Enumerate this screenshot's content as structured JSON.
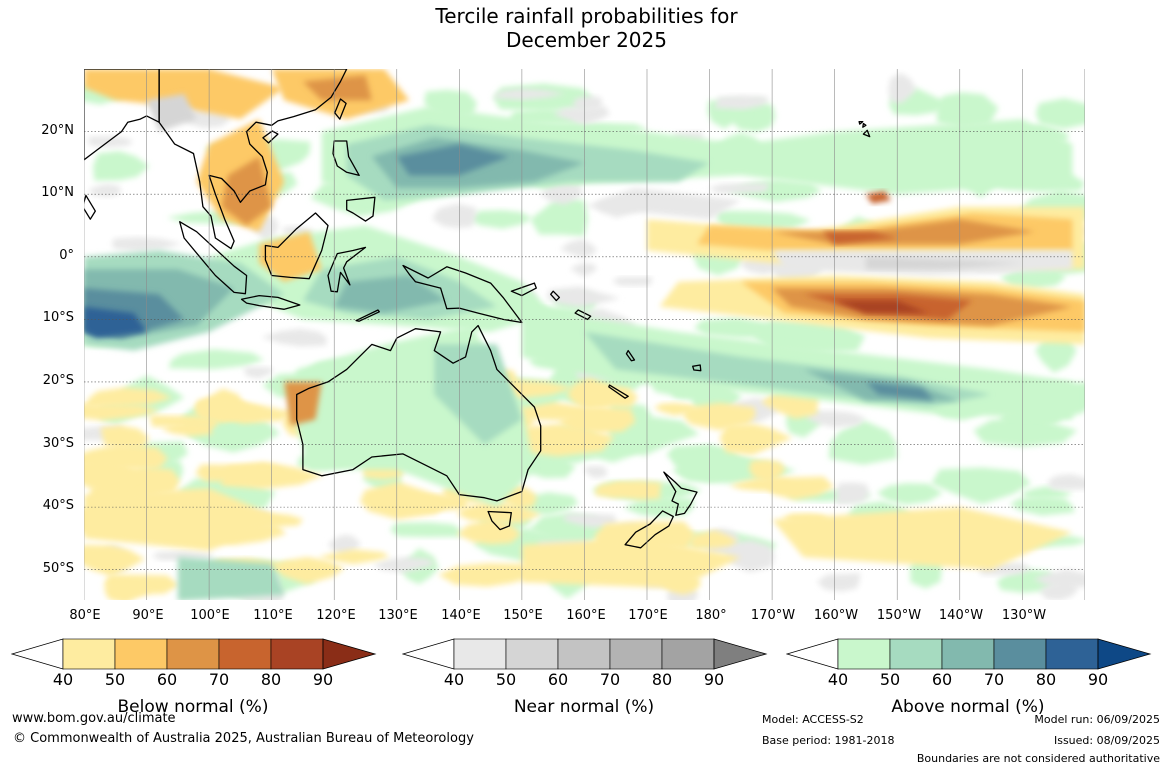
{
  "title": {
    "line1": "Tercile rainfall probabilities for",
    "line2": "December 2025"
  },
  "lat_labels": [
    "20°N",
    "10°N",
    "0°",
    "10°S",
    "20°S",
    "30°S",
    "40°S",
    "50°S"
  ],
  "lon_labels": [
    "80°E",
    "90°E",
    "100°E",
    "110°E",
    "120°E",
    "130°E",
    "140°E",
    "150°E",
    "160°E",
    "170°E",
    "180°",
    "170°W",
    "160°W",
    "150°W",
    "140°W",
    "130°W"
  ],
  "colorbars": [
    {
      "title": "Below normal (%)",
      "ticks": [
        "40",
        "50",
        "60",
        "70",
        "80",
        "90"
      ],
      "colors": [
        "#ffffff",
        "#feeca0",
        "#fdc966",
        "#de9446",
        "#c8642e",
        "#a94324",
        "#8a2d17"
      ]
    },
    {
      "title": "Near normal (%)",
      "ticks": [
        "40",
        "50",
        "60",
        "70",
        "80",
        "90"
      ],
      "colors": [
        "#ffffff",
        "#e8e8e8",
        "#d5d5d5",
        "#c3c3c3",
        "#b3b3b3",
        "#a3a3a3",
        "#7f7f7f"
      ]
    },
    {
      "title": "Above normal (%)",
      "ticks": [
        "40",
        "50",
        "60",
        "70",
        "80",
        "90"
      ],
      "colors": [
        "#ffffff",
        "#c9f7cc",
        "#a6dbc0",
        "#82b9ae",
        "#5a8e9e",
        "#2e6296",
        "#0e4886"
      ]
    }
  ],
  "footer": {
    "website": "www.bom.gov.au/climate",
    "copyright": "© Commonwealth of Australia 2025, Australian Bureau of Meteorology",
    "model": "Model: ACCESS-S2",
    "base_period": "Base period: 1981-2018",
    "model_run": "Model run: 06/09/2025",
    "issued": "Issued: 08/09/2025",
    "disclaimer": "Boundaries are not considered authoritative"
  },
  "map_colors": {
    "below": [
      "#feeca0",
      "#fdc966",
      "#de9446",
      "#c8642e",
      "#a94324"
    ],
    "near": [
      "#e8e8e8",
      "#d5d5d5"
    ],
    "above": [
      "#c9f7cc",
      "#a6dbc0",
      "#82b9ae",
      "#5a8e9e",
      "#2e6296"
    ]
  }
}
